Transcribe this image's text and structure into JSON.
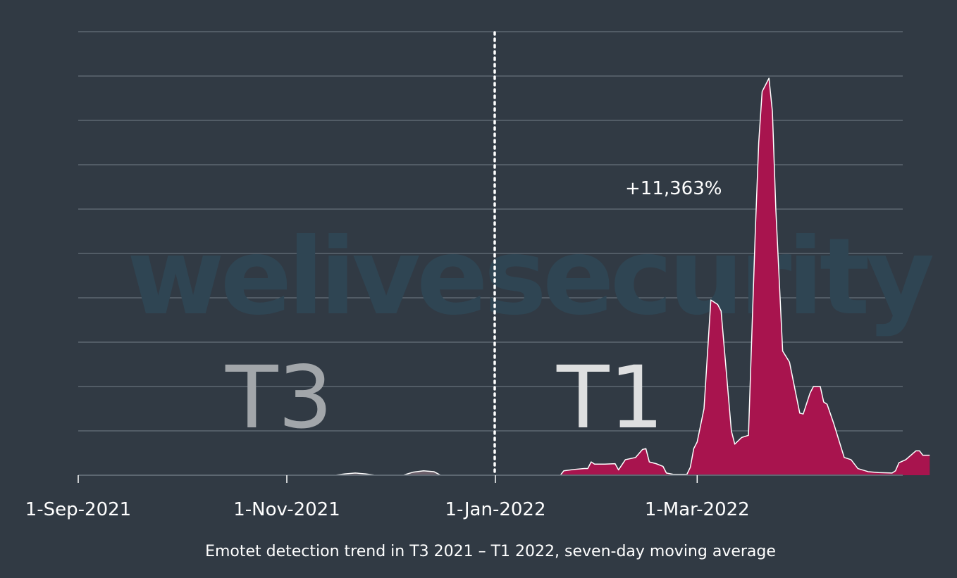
{
  "chart_data": {
    "type": "area",
    "title": "",
    "caption": "Emotet detection trend in T3 2021 – T1 2022, seven-day moving average",
    "xlabel": "",
    "ylabel": "",
    "x_tick_labels": [
      "1-Sep-2021",
      "1-Nov-2021",
      "1-Jan-2022",
      "1-Mar-2022"
    ],
    "y_range": [
      0,
      100
    ],
    "grid": true,
    "series": [
      {
        "color": "#a8144e",
        "points": [
          [
            "2021-09-01",
            0
          ],
          [
            "2021-11-15",
            0
          ],
          [
            "2021-11-18",
            0.3
          ],
          [
            "2021-11-21",
            0.5
          ],
          [
            "2021-11-24",
            0.3
          ],
          [
            "2021-11-27",
            0
          ],
          [
            "2021-12-05",
            0
          ],
          [
            "2021-12-08",
            0.7
          ],
          [
            "2021-12-11",
            1.0
          ],
          [
            "2021-12-14",
            0.8
          ],
          [
            "2021-12-16",
            0
          ],
          [
            "2022-01-20",
            0
          ],
          [
            "2022-01-21",
            1.0
          ],
          [
            "2022-01-24",
            1.3
          ],
          [
            "2022-01-27",
            1.5
          ],
          [
            "2022-01-28",
            1.5
          ],
          [
            "2022-01-29",
            3.0
          ],
          [
            "2022-01-30",
            2.5
          ],
          [
            "2022-02-02",
            2.5
          ],
          [
            "2022-02-05",
            2.6
          ],
          [
            "2022-02-06",
            1.2
          ],
          [
            "2022-02-08",
            3.5
          ],
          [
            "2022-02-11",
            4.0
          ],
          [
            "2022-02-13",
            5.8
          ],
          [
            "2022-02-14",
            6.0
          ],
          [
            "2022-02-15",
            3.0
          ],
          [
            "2022-02-17",
            2.6
          ],
          [
            "2022-02-19",
            2.0
          ],
          [
            "2022-02-20",
            0.5
          ],
          [
            "2022-02-22",
            0.2
          ],
          [
            "2022-02-26",
            0.2
          ],
          [
            "2022-02-27",
            1.8
          ],
          [
            "2022-02-28",
            6.0
          ],
          [
            "2022-03-01",
            7.5
          ],
          [
            "2022-03-03",
            15.0
          ],
          [
            "2022-03-05",
            39.5
          ],
          [
            "2022-03-07",
            38.5
          ],
          [
            "2022-03-08",
            37.0
          ],
          [
            "2022-03-10",
            19.0
          ],
          [
            "2022-03-11",
            10.0
          ],
          [
            "2022-03-12",
            7.0
          ],
          [
            "2022-03-14",
            8.5
          ],
          [
            "2022-03-16",
            9.0
          ],
          [
            "2022-03-18",
            55.0
          ],
          [
            "2022-03-19",
            75.0
          ],
          [
            "2022-03-20",
            86.5
          ],
          [
            "2022-03-22",
            89.5
          ],
          [
            "2022-03-23",
            82.0
          ],
          [
            "2022-03-24",
            60.0
          ],
          [
            "2022-03-26",
            28.0
          ],
          [
            "2022-03-28",
            25.5
          ],
          [
            "2022-03-31",
            14.0
          ],
          [
            "2022-04-01",
            13.8
          ],
          [
            "2022-04-03",
            18.5
          ],
          [
            "2022-04-04",
            20.0
          ],
          [
            "2022-04-06",
            20.0
          ],
          [
            "2022-04-07",
            16.5
          ],
          [
            "2022-04-08",
            16.0
          ],
          [
            "2022-04-10",
            11.5
          ],
          [
            "2022-04-13",
            4.0
          ],
          [
            "2022-04-15",
            3.5
          ],
          [
            "2022-04-17",
            1.5
          ],
          [
            "2022-04-20",
            0.8
          ],
          [
            "2022-04-23",
            0.6
          ],
          [
            "2022-04-27",
            0.5
          ],
          [
            "2022-04-28",
            1.0
          ],
          [
            "2022-04-29",
            2.8
          ],
          [
            "2022-05-01",
            3.5
          ],
          [
            "2022-05-04",
            5.5
          ],
          [
            "2022-05-05",
            5.5
          ],
          [
            "2022-05-06",
            4.5
          ],
          [
            "2022-05-08",
            4.5
          ]
        ]
      }
    ],
    "period_labels": [
      "T3",
      "T1"
    ],
    "annotation": "+11,363%",
    "watermark": "welivesecurity",
    "colors": {
      "background": "#313a44",
      "gridline": "#5d6771",
      "fill": "#a8144e",
      "ghost_fill": "#6b5e69",
      "outline": "#ffffff",
      "divider": "#ffffff",
      "t3_label": "#a2a6aa",
      "t1_label": "#dedfe0",
      "watermark": "#2f4553"
    }
  }
}
